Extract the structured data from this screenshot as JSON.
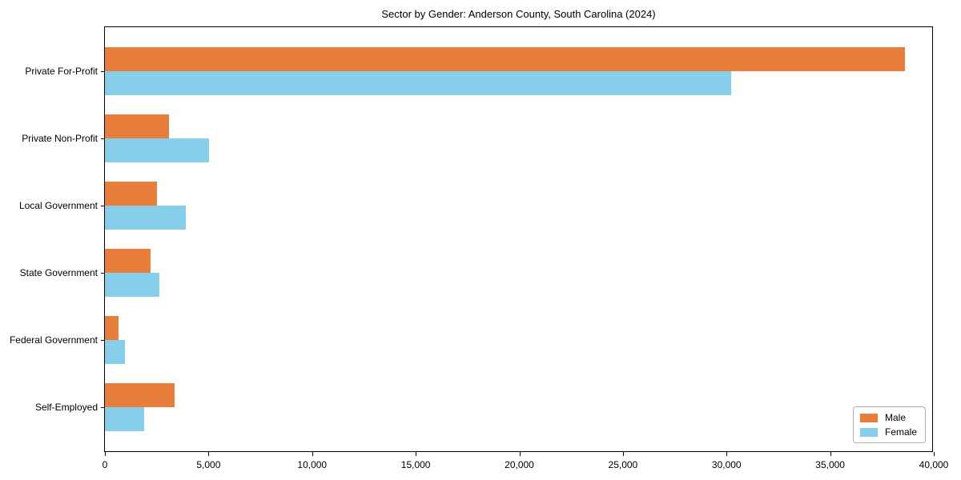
{
  "figure": {
    "background": "#ffffff"
  },
  "chart_data": {
    "type": "bar",
    "orientation": "horizontal",
    "title": "Sector by Gender: Anderson County, South Carolina (2024)",
    "categories": [
      "Private For-Profit",
      "Private Non-Profit",
      "Local Government",
      "State Government",
      "Federal Government",
      "Self-Employed"
    ],
    "series": [
      {
        "name": "Male",
        "color": "#e87e3c",
        "values": [
          38700,
          3100,
          2500,
          2200,
          650,
          3350
        ]
      },
      {
        "name": "Female",
        "color": "#87ceeb",
        "values": [
          30300,
          5050,
          3900,
          2650,
          950,
          1900
        ]
      }
    ],
    "xlabel": "",
    "ylabel": "",
    "xlim": [
      0,
      40000
    ],
    "x_ticks": [
      0,
      5000,
      10000,
      15000,
      20000,
      25000,
      30000,
      35000,
      40000
    ],
    "x_tick_labels": [
      "0",
      "5,000",
      "10,000",
      "15,000",
      "20,000",
      "25,000",
      "30,000",
      "35,000",
      "40,000"
    ],
    "grid": false,
    "legend": {
      "position": "lower right",
      "entries": [
        "Male",
        "Female"
      ]
    },
    "axis_color": "#000000",
    "text_color": "#000000"
  }
}
